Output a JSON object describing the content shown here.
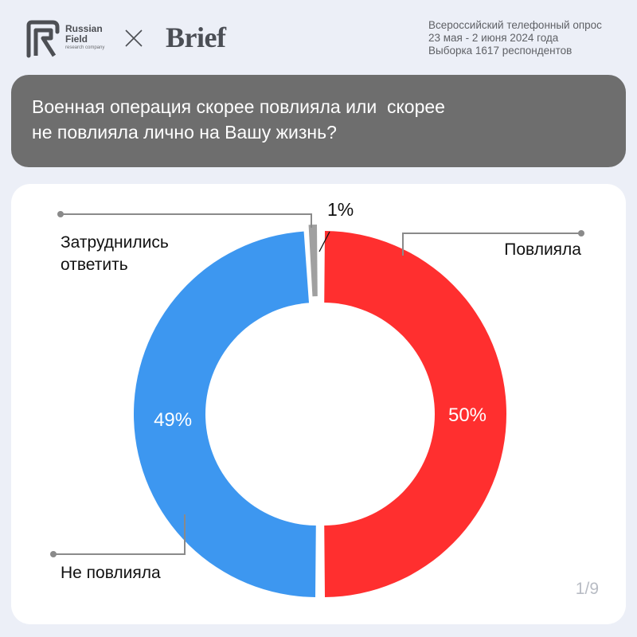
{
  "header": {
    "rf_logo_line1": "Russian",
    "rf_logo_line2": "Field",
    "rf_logo_sub": "research company",
    "partner_logo": "Brief",
    "cross_icon": "cross-icon",
    "survey_lines": [
      "Всероссийский телефонный опрос",
      "23 мая - 2 июня 2024 года",
      "Выборка 1617 респондентов"
    ]
  },
  "question": {
    "line1": "Военная операция скорее повлияла или  скорее",
    "line2": "не повлияла лично на Вашу жизнь?"
  },
  "chart_data": {
    "type": "pie",
    "donut": true,
    "categories": [
      "Повлияла",
      "Не повлияла",
      "Затруднились ответить"
    ],
    "values": [
      50,
      49,
      1
    ],
    "value_labels": [
      "50%",
      "49%",
      "1%"
    ],
    "legend_labels": [
      "Повлияла",
      "Не повлияла",
      "Затруднились\nответить"
    ],
    "colors": [
      "#ff2f2f",
      "#3d97f0",
      "#a0a0a0"
    ],
    "label_color": "#ffffff",
    "leader_color": "#8a8a8a",
    "start_angle_deg": 0,
    "direction": "clockwise"
  },
  "footer": {
    "page_current": "1",
    "page_total": "9"
  }
}
